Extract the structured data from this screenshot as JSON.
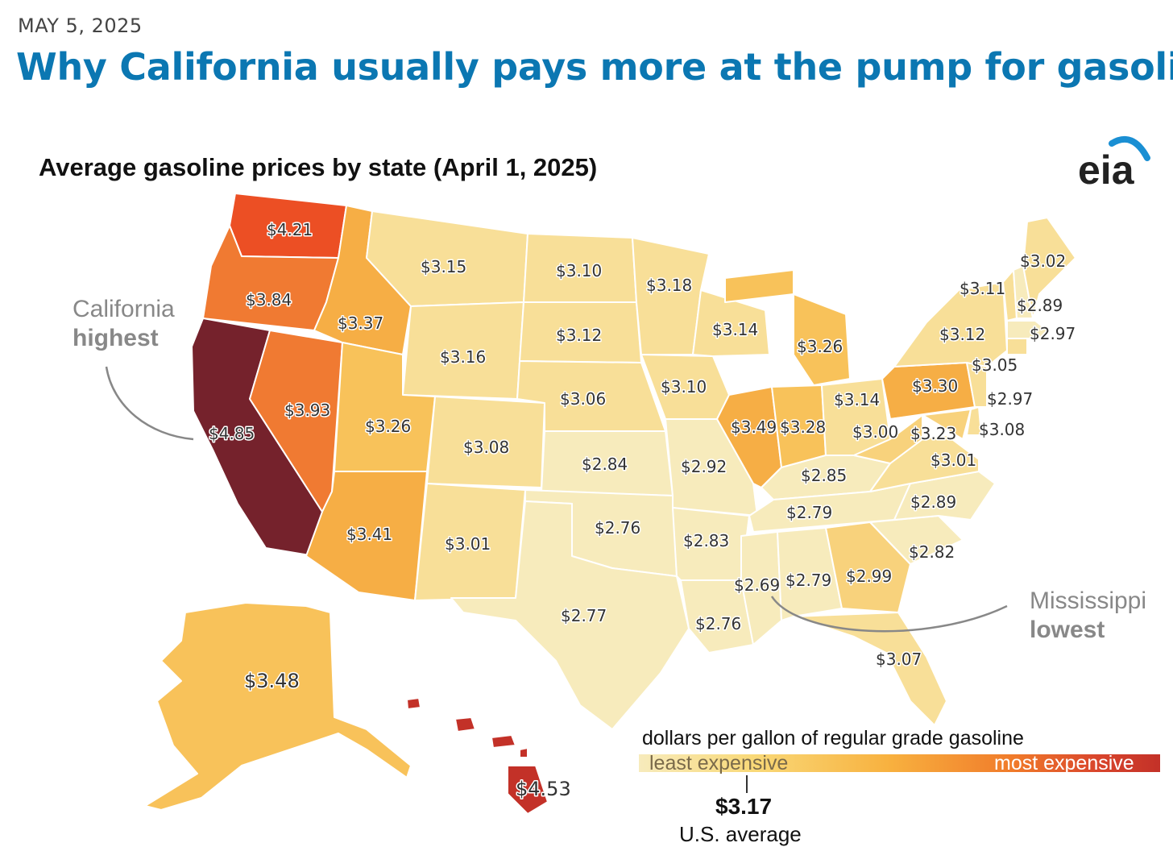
{
  "header": {
    "date": "MAY 5, 2025",
    "headline": "Why California usually pays more at the pump for gasoline"
  },
  "map": {
    "title": "Average gasoline prices by state (April 1, 2025)",
    "logo_text": "eia",
    "callouts": {
      "highest": {
        "line1": "California",
        "line2": "highest"
      },
      "lowest": {
        "line1": "Mississippi",
        "line2": "lowest"
      }
    },
    "states": {
      "WA": "$4.21",
      "OR": "$3.84",
      "CA": "$4.85",
      "NV": "$3.93",
      "ID": "$3.37",
      "MT": "$3.15",
      "WY": "$3.16",
      "UT": "$3.26",
      "AZ": "$3.41",
      "CO": "$3.08",
      "NM": "$3.01",
      "ND": "$3.10",
      "SD": "$3.12",
      "NE": "$3.06",
      "KS": "$2.84",
      "OK": "$2.76",
      "TX": "$2.77",
      "MN": "$3.18",
      "IA": "$3.10",
      "MO": "$2.92",
      "AR": "$2.83",
      "LA": "$2.76",
      "WI": "$3.14",
      "IL": "$3.49",
      "MI": "$3.26",
      "IN": "$3.28",
      "OH": "$3.14",
      "KY": "$2.85",
      "TN": "$2.79",
      "MS": "$2.69",
      "AL": "$2.79",
      "GA": "$2.99",
      "FL": "$3.07",
      "SC": "$2.82",
      "NC": "$2.89",
      "VA": "$3.01",
      "WV": "$3.00",
      "PA": "$3.30",
      "NY": "$3.12",
      "VT": "$3.11",
      "NH": "$2.89",
      "ME": "$3.02",
      "MA": "$2.97",
      "CT": "$3.05",
      "NJ": "$2.97",
      "MD": "$3.23",
      "DE": "$3.08",
      "AK": "$3.48",
      "HI": "$4.53"
    },
    "colors": {
      "lowest": "#f7ebbc",
      "low": "#f8df98",
      "lowmid": "#f9d27c",
      "mid": "#f8c25a",
      "midhigh": "#f6ae45",
      "high": "#f07a32",
      "very_high": "#ec4f24",
      "highest": "#75222c"
    }
  },
  "legend": {
    "title": "dollars per gallon of regular grade gasoline",
    "least": "least expensive",
    "most": "most expensive",
    "us_average_value": "$3.17",
    "us_average_label": "U.S. average"
  }
}
